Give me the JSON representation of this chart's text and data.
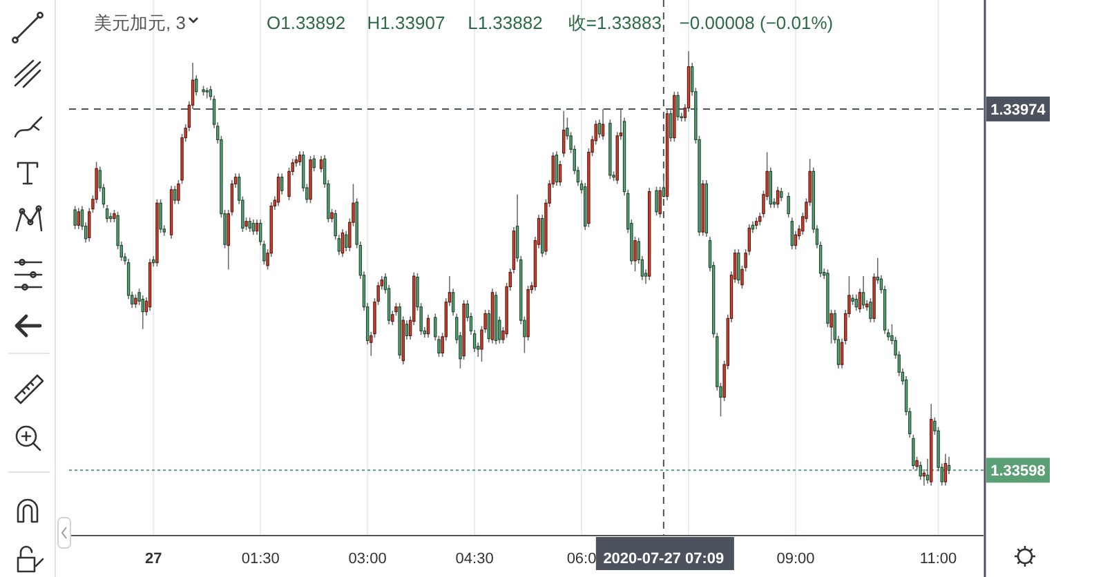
{
  "chart_data": {
    "type": "candlestick",
    "title": "美元加元, 3",
    "annotations": [
      "O1.33892",
      "H1.33907",
      "L1.33882",
      "收=1.33883",
      "−0.00008 (−0.01%)"
    ],
    "xlim": [
      "2020-07-26T22:49",
      "2020-07-27T11:38"
    ],
    "xticks": [
      {
        "value": "2020-07-27T00:00",
        "label": "27"
      },
      {
        "value": "2020-07-27T01:30",
        "label": "01:30"
      },
      {
        "value": "2020-07-27T03:00",
        "label": "03:00"
      },
      {
        "value": "2020-07-27T04:30",
        "label": "04:30"
      },
      {
        "value": "2020-07-27T06:00",
        "label": "06:0"
      },
      {
        "value": "2020-07-27T07:30",
        "label": null
      },
      {
        "value": "2020-07-27T09:00",
        "label": "09:00"
      },
      {
        "value": "2020-07-27T11:00",
        "label": "11:00"
      }
    ],
    "ylim": [
      1.3353,
      1.3404
    ],
    "yticks": [
      1.33974,
      1.33598
    ],
    "grid": "x",
    "ref_lines": [
      {
        "axis": "y",
        "value": 1.33974,
        "color": "#4c525e",
        "line_style": "dashed"
      },
      {
        "axis": "y",
        "value": 1.33598,
        "color": "#5b9f74",
        "line_style": "dotted"
      },
      {
        "axis": "x",
        "value": "2020-07-27T07:09",
        "label": "2020-07-27 07:09",
        "color": "#4c525e",
        "line_style": "dashed"
      }
    ],
    "x": [
      "2020-07-26T22:54",
      "2020-07-26T22:57",
      "2020-07-26T23:00",
      "2020-07-26T23:03",
      "2020-07-26T23:06",
      "2020-07-26T23:09",
      "2020-07-26T23:12",
      "2020-07-26T23:15",
      "2020-07-26T23:18",
      "2020-07-26T23:21",
      "2020-07-26T23:24",
      "2020-07-26T23:27",
      "2020-07-26T23:30",
      "2020-07-26T23:33",
      "2020-07-26T23:36",
      "2020-07-26T23:39",
      "2020-07-26T23:42",
      "2020-07-26T23:45",
      "2020-07-26T23:48",
      "2020-07-26T23:51",
      "2020-07-26T23:54",
      "2020-07-26T23:57",
      "2020-07-27T00:00",
      "2020-07-27T00:03",
      "2020-07-27T00:06",
      "2020-07-27T00:09",
      "2020-07-27T00:15",
      "2020-07-27T00:18",
      "2020-07-27T00:21",
      "2020-07-27T00:24",
      "2020-07-27T00:27",
      "2020-07-27T00:30",
      "2020-07-27T00:33",
      "2020-07-27T00:36",
      "2020-07-27T00:42",
      "2020-07-27T00:45",
      "2020-07-27T00:48",
      "2020-07-27T00:51",
      "2020-07-27T00:54",
      "2020-07-27T00:57",
      "2020-07-27T01:00",
      "2020-07-27T01:03",
      "2020-07-27T01:06",
      "2020-07-27T01:09",
      "2020-07-27T01:12",
      "2020-07-27T01:15",
      "2020-07-27T01:18",
      "2020-07-27T01:21",
      "2020-07-27T01:24",
      "2020-07-27T01:27",
      "2020-07-27T01:30",
      "2020-07-27T01:33",
      "2020-07-27T01:36",
      "2020-07-27T01:39",
      "2020-07-27T01:42",
      "2020-07-27T01:45",
      "2020-07-27T01:48",
      "2020-07-27T01:54",
      "2020-07-27T01:57",
      "2020-07-27T02:00",
      "2020-07-27T02:03",
      "2020-07-27T02:06",
      "2020-07-27T02:09",
      "2020-07-27T02:12",
      "2020-07-27T02:15",
      "2020-07-27T02:21",
      "2020-07-27T02:24",
      "2020-07-27T02:27",
      "2020-07-27T02:30",
      "2020-07-27T02:33",
      "2020-07-27T02:36",
      "2020-07-27T02:39",
      "2020-07-27T02:42",
      "2020-07-27T02:45",
      "2020-07-27T02:48",
      "2020-07-27T02:51",
      "2020-07-27T02:54",
      "2020-07-27T02:57",
      "2020-07-27T03:00",
      "2020-07-27T03:03",
      "2020-07-27T03:06",
      "2020-07-27T03:09",
      "2020-07-27T03:12",
      "2020-07-27T03:15",
      "2020-07-27T03:18",
      "2020-07-27T03:21",
      "2020-07-27T03:24",
      "2020-07-27T03:27",
      "2020-07-27T03:30",
      "2020-07-27T03:33",
      "2020-07-27T03:36",
      "2020-07-27T03:39",
      "2020-07-27T03:42",
      "2020-07-27T03:45",
      "2020-07-27T03:48",
      "2020-07-27T03:51",
      "2020-07-27T03:57",
      "2020-07-27T04:00",
      "2020-07-27T04:03",
      "2020-07-27T04:06",
      "2020-07-27T04:09",
      "2020-07-27T04:12",
      "2020-07-27T04:15",
      "2020-07-27T04:18",
      "2020-07-27T04:21",
      "2020-07-27T04:24",
      "2020-07-27T04:27",
      "2020-07-27T04:30",
      "2020-07-27T04:33",
      "2020-07-27T04:36",
      "2020-07-27T04:39",
      "2020-07-27T04:42",
      "2020-07-27T04:45",
      "2020-07-27T04:48",
      "2020-07-27T04:51",
      "2020-07-27T04:54",
      "2020-07-27T04:57",
      "2020-07-27T05:00",
      "2020-07-27T05:03",
      "2020-07-27T05:06",
      "2020-07-27T05:09",
      "2020-07-27T05:12",
      "2020-07-27T05:15",
      "2020-07-27T05:18",
      "2020-07-27T05:21",
      "2020-07-27T05:24",
      "2020-07-27T05:27",
      "2020-07-27T05:30",
      "2020-07-27T05:33",
      "2020-07-27T05:36",
      "2020-07-27T05:39",
      "2020-07-27T05:42",
      "2020-07-27T05:45",
      "2020-07-27T05:48",
      "2020-07-27T05:51",
      "2020-07-27T05:54",
      "2020-07-27T05:57",
      "2020-07-27T06:00",
      "2020-07-27T06:03",
      "2020-07-27T06:06",
      "2020-07-27T06:09",
      "2020-07-27T06:12",
      "2020-07-27T06:15",
      "2020-07-27T06:18",
      "2020-07-27T06:24",
      "2020-07-27T06:27",
      "2020-07-27T06:30",
      "2020-07-27T06:33",
      "2020-07-27T06:36",
      "2020-07-27T06:39",
      "2020-07-27T06:42",
      "2020-07-27T06:45",
      "2020-07-27T06:48",
      "2020-07-27T06:51",
      "2020-07-27T06:54",
      "2020-07-27T06:57",
      "2020-07-27T07:03",
      "2020-07-27T07:06",
      "2020-07-27T07:09",
      "2020-07-27T07:12",
      "2020-07-27T07:15",
      "2020-07-27T07:18",
      "2020-07-27T07:21",
      "2020-07-27T07:24",
      "2020-07-27T07:27",
      "2020-07-27T07:30",
      "2020-07-27T07:33",
      "2020-07-27T07:36",
      "2020-07-27T07:39",
      "2020-07-27T07:42",
      "2020-07-27T07:45",
      "2020-07-27T07:48",
      "2020-07-27T07:51",
      "2020-07-27T07:54",
      "2020-07-27T07:57",
      "2020-07-27T08:00",
      "2020-07-27T08:03",
      "2020-07-27T08:06",
      "2020-07-27T08:09",
      "2020-07-27T08:12",
      "2020-07-27T08:15",
      "2020-07-27T08:18",
      "2020-07-27T08:21",
      "2020-07-27T08:24",
      "2020-07-27T08:27",
      "2020-07-27T08:30",
      "2020-07-27T08:33",
      "2020-07-27T08:36",
      "2020-07-27T08:39",
      "2020-07-27T08:42",
      "2020-07-27T08:45",
      "2020-07-27T08:48",
      "2020-07-27T08:54",
      "2020-07-27T08:57",
      "2020-07-27T09:00",
      "2020-07-27T09:03",
      "2020-07-27T09:06",
      "2020-07-27T09:09",
      "2020-07-27T09:12",
      "2020-07-27T09:15",
      "2020-07-27T09:18",
      "2020-07-27T09:21",
      "2020-07-27T09:24",
      "2020-07-27T09:27",
      "2020-07-27T09:30",
      "2020-07-27T09:33",
      "2020-07-27T09:36",
      "2020-07-27T09:39",
      "2020-07-27T09:42",
      "2020-07-27T09:45",
      "2020-07-27T09:48",
      "2020-07-27T09:51",
      "2020-07-27T09:54",
      "2020-07-27T09:57",
      "2020-07-27T10:00",
      "2020-07-27T10:03",
      "2020-07-27T10:06",
      "2020-07-27T10:09",
      "2020-07-27T10:12",
      "2020-07-27T10:15",
      "2020-07-27T10:18",
      "2020-07-27T10:21",
      "2020-07-27T10:24",
      "2020-07-27T10:27",
      "2020-07-27T10:30",
      "2020-07-27T10:33",
      "2020-07-27T10:36",
      "2020-07-27T10:39",
      "2020-07-27T10:42",
      "2020-07-27T10:45",
      "2020-07-27T10:48",
      "2020-07-27T10:51",
      "2020-07-27T10:54",
      "2020-07-27T10:57",
      "2020-07-27T11:00",
      "2020-07-27T11:03",
      "2020-07-27T11:06",
      "2020-07-27T11:09"
    ],
    "ohlc": [
      [
        1.33869,
        1.33873,
        1.33849,
        1.33853
      ],
      [
        1.33853,
        1.33871,
        1.33849,
        1.33867
      ],
      [
        1.33869,
        1.33873,
        1.33848,
        1.33852
      ],
      [
        1.33852,
        1.33856,
        1.33835,
        1.33839
      ],
      [
        1.3384,
        1.33871,
        1.33836,
        1.33867
      ],
      [
        1.3387,
        1.33884,
        1.33866,
        1.3388
      ],
      [
        1.3388,
        1.33919,
        1.33876,
        1.33912
      ],
      [
        1.3391,
        1.33914,
        1.33888,
        1.33892
      ],
      [
        1.33892,
        1.33896,
        1.33871,
        1.33875
      ],
      [
        1.3387,
        1.33874,
        1.33856,
        1.3386
      ],
      [
        1.33862,
        1.33866,
        1.33856,
        1.3386
      ],
      [
        1.3386,
        1.33869,
        1.33856,
        1.33865
      ],
      [
        1.33863,
        1.33867,
        1.33828,
        1.33832
      ],
      [
        1.33832,
        1.33836,
        1.33816,
        1.3382
      ],
      [
        1.3382,
        1.33824,
        1.33812,
        1.33816
      ],
      [
        1.33814,
        1.33818,
        1.33776,
        1.3378
      ],
      [
        1.3378,
        1.33784,
        1.33767,
        1.33771
      ],
      [
        1.33771,
        1.33781,
        1.33767,
        1.33777
      ],
      [
        1.33783,
        1.33787,
        1.3377,
        1.33774
      ],
      [
        1.33776,
        1.3378,
        1.33745,
        1.33763
      ],
      [
        1.33763,
        1.33778,
        1.33759,
        1.33774
      ],
      [
        1.33768,
        1.33818,
        1.33764,
        1.33814
      ],
      [
        1.33817,
        1.33821,
        1.3381,
        1.33814
      ],
      [
        1.33814,
        1.3388,
        1.3381,
        1.33876
      ],
      [
        1.33876,
        1.3388,
        1.33845,
        1.33849
      ],
      [
        1.33849,
        1.33853,
        1.33842,
        1.33846
      ],
      [
        1.33843,
        1.33894,
        1.33839,
        1.3389
      ],
      [
        1.3389,
        1.33894,
        1.33875,
        1.33879
      ],
      [
        1.33879,
        1.339,
        1.33875,
        1.33896
      ],
      [
        1.339,
        1.33948,
        1.33896,
        1.33944
      ],
      [
        1.33944,
        1.33958,
        1.3394,
        1.33954
      ],
      [
        1.33955,
        1.33982,
        1.33951,
        1.33978
      ],
      [
        1.33978,
        1.34022,
        1.33974,
        1.34004
      ],
      [
        1.34005,
        1.34009,
        1.33988,
        1.33992
      ],
      [
        1.33994,
        1.33998,
        1.33988,
        1.33992
      ],
      [
        1.33993,
        1.33996,
        1.33985,
        1.33992
      ],
      [
        1.33994,
        1.33998,
        1.33983,
        1.33987
      ],
      [
        1.33984,
        1.33988,
        1.33954,
        1.33958
      ],
      [
        1.33956,
        1.3396,
        1.33938,
        1.33942
      ],
      [
        1.33942,
        1.33946,
        1.33861,
        1.33865
      ],
      [
        1.33865,
        1.33869,
        1.33829,
        1.33833
      ],
      [
        1.33832,
        1.33869,
        1.33807,
        1.33865
      ],
      [
        1.33867,
        1.339,
        1.33863,
        1.33896
      ],
      [
        1.33896,
        1.33907,
        1.33892,
        1.33903
      ],
      [
        1.33903,
        1.33907,
        1.33875,
        1.33879
      ],
      [
        1.33879,
        1.33883,
        1.33846,
        1.3385
      ],
      [
        1.33852,
        1.33861,
        1.33848,
        1.33857
      ],
      [
        1.33857,
        1.33861,
        1.33846,
        1.3385
      ],
      [
        1.33855,
        1.33859,
        1.33843,
        1.33847
      ],
      [
        1.33847,
        1.33859,
        1.33843,
        1.33855
      ],
      [
        1.33855,
        1.33859,
        1.33832,
        1.33836
      ],
      [
        1.33833,
        1.33837,
        1.33812,
        1.33816
      ],
      [
        1.33811,
        1.33828,
        1.33807,
        1.33824
      ],
      [
        1.33824,
        1.33877,
        1.3382,
        1.33873
      ],
      [
        1.33873,
        1.33883,
        1.33869,
        1.33879
      ],
      [
        1.33877,
        1.33907,
        1.33873,
        1.33903
      ],
      [
        1.33903,
        1.33907,
        1.33885,
        1.33889
      ],
      [
        1.33883,
        1.33913,
        1.33879,
        1.33909
      ],
      [
        1.33909,
        1.33922,
        1.33905,
        1.33918
      ],
      [
        1.33918,
        1.33925,
        1.33914,
        1.33921
      ],
      [
        1.33919,
        1.3393,
        1.33915,
        1.33926
      ],
      [
        1.33926,
        1.3393,
        1.33888,
        1.33892
      ],
      [
        1.33892,
        1.33896,
        1.33876,
        1.3388
      ],
      [
        1.3388,
        1.33925,
        1.33876,
        1.33921
      ],
      [
        1.33922,
        1.33926,
        1.33909,
        1.33913
      ],
      [
        1.33912,
        1.33925,
        1.33908,
        1.33921
      ],
      [
        1.33922,
        1.33926,
        1.33892,
        1.33896
      ],
      [
        1.33896,
        1.339,
        1.33856,
        1.3386
      ],
      [
        1.3386,
        1.3387,
        1.33856,
        1.33866
      ],
      [
        1.33865,
        1.33869,
        1.33838,
        1.33842
      ],
      [
        1.33839,
        1.33843,
        1.33822,
        1.33826
      ],
      [
        1.33824,
        1.33849,
        1.3382,
        1.33845
      ],
      [
        1.33843,
        1.33847,
        1.33826,
        1.3383
      ],
      [
        1.3383,
        1.3386,
        1.33826,
        1.33856
      ],
      [
        1.33856,
        1.33896,
        1.33852,
        1.33876
      ],
      [
        1.33877,
        1.33881,
        1.33829,
        1.33833
      ],
      [
        1.33832,
        1.33836,
        1.33797,
        1.33801
      ],
      [
        1.33801,
        1.33805,
        1.33764,
        1.33768
      ],
      [
        1.33768,
        1.33772,
        1.33729,
        1.33733
      ],
      [
        1.33731,
        1.33742,
        1.33717,
        1.33738
      ],
      [
        1.3374,
        1.33777,
        1.33736,
        1.33773
      ],
      [
        1.33774,
        1.33794,
        1.3377,
        1.3379
      ],
      [
        1.3379,
        1.338,
        1.33786,
        1.33796
      ],
      [
        1.33799,
        1.33803,
        1.33782,
        1.33786
      ],
      [
        1.33787,
        1.33791,
        1.3375,
        1.33754
      ],
      [
        1.33753,
        1.33764,
        1.33749,
        1.3376
      ],
      [
        1.33763,
        1.33772,
        1.33759,
        1.33768
      ],
      [
        1.33768,
        1.33772,
        1.33714,
        1.33718
      ],
      [
        1.33712,
        1.33758,
        1.33708,
        1.33754
      ],
      [
        1.3375,
        1.33754,
        1.33734,
        1.33738
      ],
      [
        1.33738,
        1.33758,
        1.33734,
        1.33754
      ],
      [
        1.33753,
        1.33804,
        1.33749,
        1.338
      ],
      [
        1.33799,
        1.33803,
        1.33764,
        1.33768
      ],
      [
        1.33768,
        1.33772,
        1.33739,
        1.33743
      ],
      [
        1.33743,
        1.33747,
        1.33736,
        1.3374
      ],
      [
        1.3374,
        1.3376,
        1.33736,
        1.33756
      ],
      [
        1.33757,
        1.33761,
        1.33733,
        1.33737
      ],
      [
        1.33734,
        1.33738,
        1.33716,
        1.3372
      ],
      [
        1.3372,
        1.33741,
        1.33716,
        1.33737
      ],
      [
        1.33737,
        1.33777,
        1.33733,
        1.33773
      ],
      [
        1.33773,
        1.338,
        1.33769,
        1.33783
      ],
      [
        1.33783,
        1.33787,
        1.33759,
        1.33763
      ],
      [
        1.33757,
        1.33761,
        1.3373,
        1.33734
      ],
      [
        1.33738,
        1.33742,
        1.33704,
        1.33714
      ],
      [
        1.33717,
        1.33775,
        1.33713,
        1.33771
      ],
      [
        1.33771,
        1.33775,
        1.33753,
        1.33757
      ],
      [
        1.33758,
        1.33762,
        1.33739,
        1.33743
      ],
      [
        1.3374,
        1.33744,
        1.33721,
        1.33725
      ],
      [
        1.33727,
        1.33731,
        1.33716,
        1.33724
      ],
      [
        1.33724,
        1.33748,
        1.33711,
        1.33744
      ],
      [
        1.33745,
        1.33765,
        1.33741,
        1.33761
      ],
      [
        1.33761,
        1.33765,
        1.33731,
        1.33735
      ],
      [
        1.33734,
        1.33787,
        1.3373,
        1.33783
      ],
      [
        1.3378,
        1.33784,
        1.33729,
        1.33733
      ],
      [
        1.33754,
        1.33758,
        1.3373,
        1.33734
      ],
      [
        1.33734,
        1.33747,
        1.3373,
        1.33743
      ],
      [
        1.3374,
        1.33793,
        1.33736,
        1.33789
      ],
      [
        1.33789,
        1.33808,
        1.33785,
        1.33804
      ],
      [
        1.33807,
        1.33851,
        1.33803,
        1.33847
      ],
      [
        1.33852,
        1.33885,
        1.33815,
        1.33819
      ],
      [
        1.33817,
        1.33821,
        1.3375,
        1.33754
      ],
      [
        1.33754,
        1.33758,
        1.3372,
        1.33737
      ],
      [
        1.33737,
        1.3379,
        1.33733,
        1.33786
      ],
      [
        1.33786,
        1.33794,
        1.33782,
        1.3379
      ],
      [
        1.33789,
        1.33841,
        1.33785,
        1.33837
      ],
      [
        1.33833,
        1.33864,
        1.33829,
        1.3386
      ],
      [
        1.3386,
        1.33864,
        1.3382,
        1.33824
      ],
      [
        1.33826,
        1.3388,
        1.33822,
        1.33876
      ],
      [
        1.33876,
        1.339,
        1.33872,
        1.33896
      ],
      [
        1.33896,
        1.33929,
        1.33892,
        1.33925
      ],
      [
        1.33926,
        1.3393,
        1.33894,
        1.33898
      ],
      [
        1.33898,
        1.3392,
        1.33894,
        1.33916
      ],
      [
        1.33928,
        1.33972,
        1.33924,
        1.33952
      ],
      [
        1.33954,
        1.33965,
        1.33942,
        1.33946
      ],
      [
        1.33946,
        1.3395,
        1.33928,
        1.33932
      ],
      [
        1.33932,
        1.33936,
        1.33906,
        1.3391
      ],
      [
        1.3391,
        1.33914,
        1.33894,
        1.33898
      ],
      [
        1.33896,
        1.339,
        1.33886,
        1.3389
      ],
      [
        1.33893,
        1.33897,
        1.33848,
        1.33852
      ],
      [
        1.33855,
        1.33933,
        1.33851,
        1.33929
      ],
      [
        1.33929,
        1.33946,
        1.33925,
        1.33942
      ],
      [
        1.33941,
        1.33962,
        1.33937,
        1.33958
      ],
      [
        1.33959,
        1.33963,
        1.33944,
        1.33948
      ],
      [
        1.33946,
        1.33974,
        1.33942,
        1.33958
      ],
      [
        1.33959,
        1.33963,
        1.33901,
        1.33905
      ],
      [
        1.33905,
        1.33909,
        1.33899,
        1.33903
      ],
      [
        1.339,
        1.3395,
        1.33896,
        1.33946
      ],
      [
        1.33946,
        1.33974,
        1.33942,
        1.33949
      ],
      [
        1.33961,
        1.33965,
        1.33884,
        1.33888
      ],
      [
        1.33886,
        1.3389,
        1.33845,
        1.33849
      ],
      [
        1.33855,
        1.33859,
        1.33812,
        1.33816
      ],
      [
        1.33816,
        1.33841,
        1.33805,
        1.33837
      ],
      [
        1.33836,
        1.3384,
        1.33813,
        1.33817
      ],
      [
        1.33817,
        1.33821,
        1.33796,
        1.338
      ],
      [
        1.33803,
        1.33807,
        1.33792,
        1.338
      ],
      [
        1.338,
        1.33892,
        1.33796,
        1.33888
      ],
      [
        1.33889,
        1.33893,
        1.33863,
        1.33867
      ],
      [
        1.33865,
        1.33893,
        1.33861,
        1.33889
      ],
      [
        1.33892,
        1.33907,
        1.33882,
        1.33883
      ],
      [
        1.33883,
        1.33973,
        1.33879,
        1.33969
      ],
      [
        1.33969,
        1.33973,
        1.3394,
        1.33944
      ],
      [
        1.33944,
        1.33992,
        1.3394,
        1.33988
      ],
      [
        1.33988,
        1.33992,
        1.33962,
        1.33966
      ],
      [
        1.33966,
        1.3397,
        1.33961,
        1.33965
      ],
      [
        1.33965,
        1.33979,
        1.33961,
        1.33975
      ],
      [
        1.33975,
        1.34034,
        1.33971,
        1.34018
      ],
      [
        1.34018,
        1.34022,
        1.33988,
        1.33992
      ],
      [
        1.33992,
        1.33996,
        1.33938,
        1.33942
      ],
      [
        1.33942,
        1.33946,
        1.33842,
        1.33846
      ],
      [
        1.33846,
        1.339,
        1.33842,
        1.33896
      ],
      [
        1.33896,
        1.339,
        1.33841,
        1.33845
      ],
      [
        1.33837,
        1.33841,
        1.33805,
        1.33809
      ],
      [
        1.33811,
        1.33815,
        1.33736,
        1.3374
      ],
      [
        1.33737,
        1.33741,
        1.33681,
        1.33685
      ],
      [
        1.33685,
        1.33689,
        1.33654,
        1.33674
      ],
      [
        1.33674,
        1.33712,
        1.3367,
        1.33708
      ],
      [
        1.33707,
        1.3376,
        1.33703,
        1.33756
      ],
      [
        1.33756,
        1.33805,
        1.33752,
        1.33801
      ],
      [
        1.33797,
        1.33828,
        1.33793,
        1.33824
      ],
      [
        1.33824,
        1.33828,
        1.33792,
        1.33796
      ],
      [
        1.33791,
        1.33811,
        1.33787,
        1.33807
      ],
      [
        1.33809,
        1.33828,
        1.33805,
        1.33824
      ],
      [
        1.33826,
        1.33854,
        1.33822,
        1.3385
      ],
      [
        1.33853,
        1.33857,
        1.33845,
        1.33849
      ],
      [
        1.33853,
        1.33861,
        1.33849,
        1.33857
      ],
      [
        1.33857,
        1.33866,
        1.33853,
        1.33862
      ],
      [
        1.33865,
        1.33889,
        1.33861,
        1.33885
      ],
      [
        1.33883,
        1.33929,
        1.33879,
        1.33909
      ],
      [
        1.33909,
        1.33913,
        1.33871,
        1.33875
      ],
      [
        1.33877,
        1.33881,
        1.33871,
        1.33875
      ],
      [
        1.33875,
        1.33893,
        1.33871,
        1.33889
      ],
      [
        1.33888,
        1.33892,
        1.33878,
        1.33882
      ],
      [
        1.33883,
        1.33887,
        1.33861,
        1.33865
      ],
      [
        1.33857,
        1.33861,
        1.33828,
        1.33832
      ],
      [
        1.33832,
        1.33847,
        1.33828,
        1.33843
      ],
      [
        1.33842,
        1.33853,
        1.33838,
        1.33849
      ],
      [
        1.33847,
        1.33866,
        1.33843,
        1.33862
      ],
      [
        1.3386,
        1.33881,
        1.33856,
        1.33877
      ],
      [
        1.33877,
        1.33922,
        1.33873,
        1.33909
      ],
      [
        1.33909,
        1.33913,
        1.33845,
        1.33849
      ],
      [
        1.33849,
        1.33853,
        1.33829,
        1.33833
      ],
      [
        1.33832,
        1.33836,
        1.33799,
        1.33803
      ],
      [
        1.33804,
        1.33808,
        1.33797,
        1.33801
      ],
      [
        1.33803,
        1.33807,
        1.33747,
        1.33751
      ],
      [
        1.33747,
        1.33765,
        1.3373,
        1.33761
      ],
      [
        1.33761,
        1.33765,
        1.3373,
        1.33734
      ],
      [
        1.33734,
        1.33738,
        1.33704,
        1.33708
      ],
      [
        1.33708,
        1.33735,
        1.33704,
        1.33731
      ],
      [
        1.33733,
        1.33765,
        1.33729,
        1.33761
      ],
      [
        1.33761,
        1.338,
        1.33757,
        1.3378
      ],
      [
        1.33777,
        1.33781,
        1.3377,
        1.33774
      ],
      [
        1.33776,
        1.33781,
        1.33764,
        1.33768
      ],
      [
        1.33766,
        1.33787,
        1.33762,
        1.33783
      ],
      [
        1.33783,
        1.338,
        1.33766,
        1.3377
      ],
      [
        1.33768,
        1.33775,
        1.33764,
        1.33771
      ],
      [
        1.33773,
        1.33777,
        1.33752,
        1.33756
      ],
      [
        1.33756,
        1.33803,
        1.33752,
        1.33799
      ],
      [
        1.33799,
        1.33819,
        1.33792,
        1.33796
      ],
      [
        1.33797,
        1.33801,
        1.33782,
        1.33786
      ],
      [
        1.33786,
        1.3379,
        1.3374,
        1.33744
      ],
      [
        1.33741,
        1.33745,
        1.33733,
        1.33737
      ],
      [
        1.33738,
        1.3375,
        1.33729,
        1.33733
      ],
      [
        1.33733,
        1.33737,
        1.33714,
        1.33718
      ],
      [
        1.33718,
        1.33722,
        1.33696,
        1.337
      ],
      [
        1.337,
        1.33704,
        1.33687,
        1.33691
      ],
      [
        1.33692,
        1.33696,
        1.33655,
        1.33659
      ],
      [
        1.33659,
        1.33663,
        1.33632,
        1.33636
      ],
      [
        1.33631,
        1.33635,
        1.33599,
        1.33603
      ],
      [
        1.33602,
        1.33612,
        1.33598,
        1.33608
      ],
      [
        1.33603,
        1.33607,
        1.33588,
        1.33592
      ],
      [
        1.33592,
        1.33599,
        1.33582,
        1.33595
      ],
      [
        1.33593,
        1.3361,
        1.33584,
        1.33588
      ],
      [
        1.33586,
        1.33667,
        1.33582,
        1.33651
      ],
      [
        1.33649,
        1.33653,
        1.33635,
        1.33639
      ],
      [
        1.33639,
        1.33643,
        1.33597,
        1.33601
      ],
      [
        1.33601,
        1.33605,
        1.33582,
        1.33586
      ],
      [
        1.33586,
        1.33615,
        1.33582,
        1.33605
      ],
      [
        1.33603,
        1.33612,
        1.33594,
        1.33598
      ]
    ]
  }
}
